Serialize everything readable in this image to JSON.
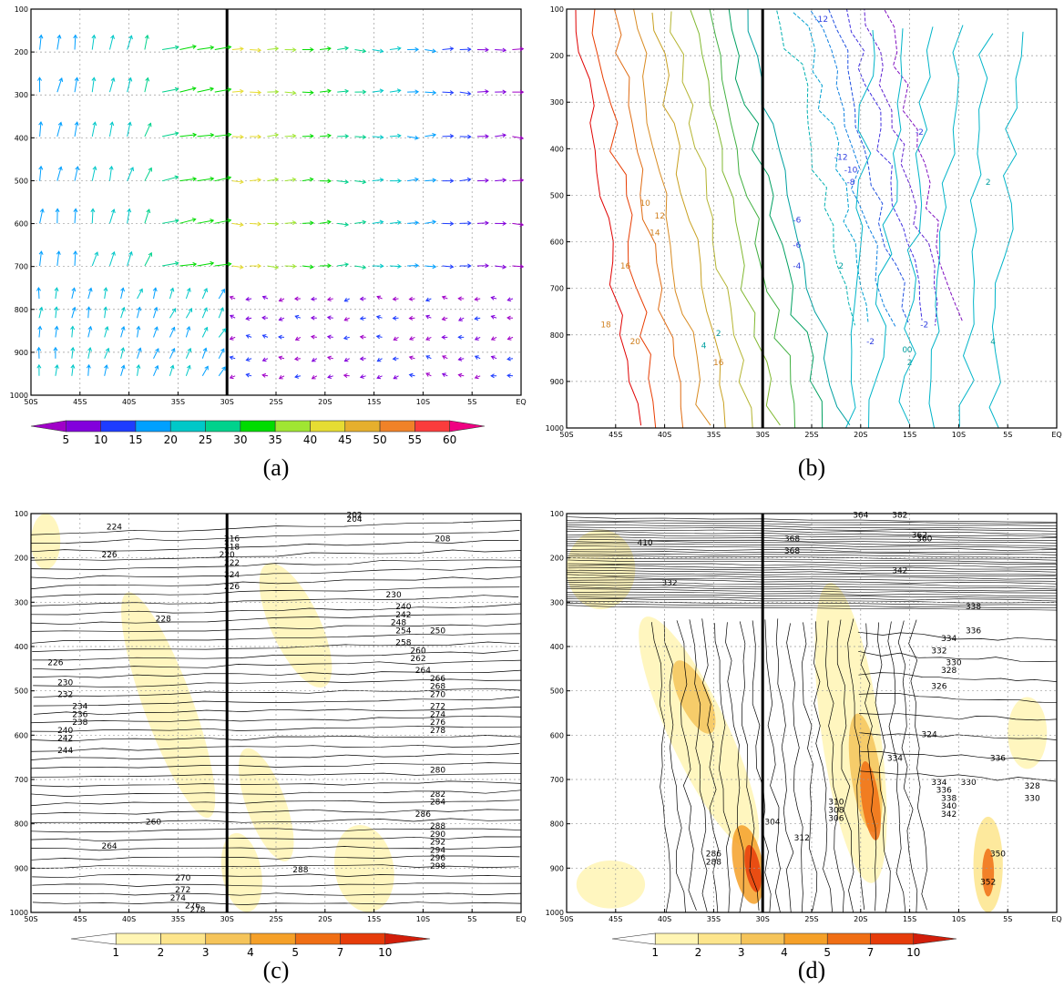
{
  "x_ticks": [
    "50S",
    "45S",
    "40S",
    "35S",
    "30S",
    "25S",
    "20S",
    "15S",
    "10S",
    "5S",
    "EQ"
  ],
  "y_ticks": [
    "100",
    "200",
    "300",
    "400",
    "500",
    "600",
    "700",
    "800",
    "900",
    "1000"
  ],
  "panels": [
    {
      "id": "a",
      "caption": "(a)",
      "kind": "vectors",
      "colorbar": {
        "labels": [
          "5",
          "10",
          "15",
          "20",
          "25",
          "30",
          "35",
          "40",
          "45",
          "50",
          "55",
          "60"
        ],
        "colors": [
          "#a000c8",
          "#8200dc",
          "#1e3cff",
          "#00a0ff",
          "#00c8c8",
          "#00d28c",
          "#00dc00",
          "#a0e632",
          "#e6dc32",
          "#e6af2d",
          "#f08228",
          "#fa3c3c",
          "#f00082"
        ]
      }
    },
    {
      "id": "b",
      "caption": "(b)",
      "kind": "contours",
      "contour_labels": [
        "-12",
        "-2",
        "-12",
        "-10",
        "-8",
        "-6",
        "-6",
        "-4",
        "-2",
        "0",
        "2",
        "2",
        "2",
        "4",
        "4",
        "10",
        "12",
        "14",
        "16",
        "18",
        "20",
        "16",
        "2",
        "-2",
        "0"
      ]
    },
    {
      "id": "c",
      "caption": "(c)",
      "kind": "contours_shaded",
      "contour_labels": [
        "224",
        "226",
        "228",
        "226",
        "230",
        "232",
        "234",
        "236",
        "238",
        "240",
        "242",
        "244",
        "260",
        "264",
        "270",
        "272",
        "274",
        "276",
        "278",
        "202",
        "204",
        "208",
        "216",
        "218",
        "220",
        "222",
        "224",
        "226",
        "230",
        "240",
        "242",
        "248",
        "250",
        "254",
        "258",
        "260",
        "262",
        "264",
        "266",
        "268",
        "270",
        "272",
        "274",
        "276",
        "278",
        "280",
        "282",
        "284",
        "286",
        "288",
        "290",
        "292",
        "294",
        "296",
        "298",
        "288"
      ],
      "colorbar": {
        "labels": [
          "1",
          "2",
          "3",
          "4",
          "5",
          "7",
          "10"
        ],
        "colors": [
          "#ffffff",
          "#fff5b4",
          "#fde58c",
          "#f5c45a",
          "#f5a028",
          "#f06e14",
          "#e63c0a",
          "#d21e0a"
        ]
      }
    },
    {
      "id": "d",
      "caption": "(d)",
      "kind": "contours_shaded",
      "contour_labels": [
        "364",
        "382",
        "368",
        "368",
        "360",
        "362",
        "342",
        "338",
        "336",
        "334",
        "332",
        "330",
        "328",
        "326",
        "324",
        "334",
        "336",
        "330",
        "328",
        "330",
        "334",
        "336",
        "338",
        "340",
        "342",
        "350",
        "352",
        "310",
        "308",
        "306",
        "304",
        "312",
        "286",
        "288",
        "410",
        "332"
      ],
      "colorbar": {
        "labels": [
          "1",
          "2",
          "3",
          "4",
          "5",
          "7",
          "10"
        ],
        "colors": [
          "#ffffff",
          "#fff5b4",
          "#fde58c",
          "#f5c45a",
          "#f5a028",
          "#f06e14",
          "#e63c0a",
          "#d21e0a"
        ]
      }
    }
  ]
}
